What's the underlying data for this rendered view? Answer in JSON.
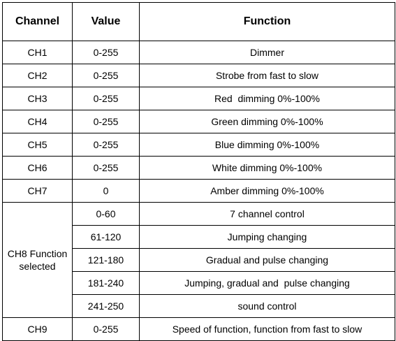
{
  "table": {
    "headers": [
      "Channel",
      "Value",
      "Function"
    ],
    "rows": [
      {
        "channel": "CH1",
        "value": "0-255",
        "function": "Dimmer"
      },
      {
        "channel": "CH2",
        "value": "0-255",
        "function": "Strobe from fast to slow"
      },
      {
        "channel": "CH3",
        "value": "0-255",
        "function": "Red  dimming 0%-100%"
      },
      {
        "channel": "CH4",
        "value": "0-255",
        "function": "Green dimming 0%-100%"
      },
      {
        "channel": "CH5",
        "value": "0-255",
        "function": "Blue dimming 0%-100%"
      },
      {
        "channel": "CH6",
        "value": "0-255",
        "function": "White dimming 0%-100%"
      },
      {
        "channel": "CH7",
        "value": "0",
        "function": "Amber dimming 0%-100%"
      }
    ],
    "ch8": {
      "channel_line1": "CH8 Function",
      "channel_line2": "selected",
      "subrows": [
        {
          "value": "0-60",
          "function": "7 channel control"
        },
        {
          "value": "61-120",
          "function": "Jumping changing"
        },
        {
          "value": "121-180",
          "function": "Gradual and pulse changing"
        },
        {
          "value": "181-240",
          "function": "Jumping, gradual and  pulse changing"
        },
        {
          "value": "241-250",
          "function": "sound control"
        }
      ]
    },
    "ch9": {
      "channel": "CH9",
      "value": "0-255",
      "function": "Speed of function, function from fast to slow"
    }
  }
}
